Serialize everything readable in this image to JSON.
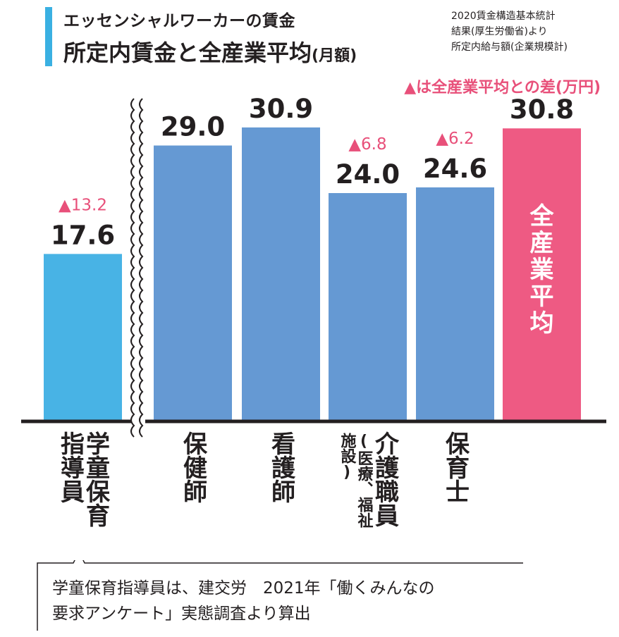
{
  "header": {
    "title_line1": "エッセンシャルワーカーの賃金",
    "title_line2_main": "所定内賃金と全産業平均",
    "title_line2_unit": "(月額)"
  },
  "source": {
    "line1": "2020賃金構造基本統計",
    "line2": "結果(厚生労働省)より",
    "line3": "所定内給与額(企業規模計)"
  },
  "legend_note": "▲は全産業平均との差(万円)",
  "colors": {
    "light_blue": "#48b3e5",
    "blue": "#6599d3",
    "pink": "#ee5a83",
    "diff_pink": "#e8507a",
    "text": "#231f20"
  },
  "chart_data": {
    "type": "bar",
    "unit": "万円",
    "categories": [
      "学童保育\n指導員",
      "保健師",
      "看護師",
      "介護職員",
      "保育士",
      "全産業平均"
    ],
    "category_sub": [
      "",
      "",
      "",
      "(医療、福祉\n施設)",
      "",
      ""
    ],
    "values": [
      17.6,
      29.0,
      30.9,
      24.0,
      24.6,
      30.8
    ],
    "value_labels": [
      "17.6",
      "29.0",
      "30.9",
      "24.0",
      "24.6",
      "30.8"
    ],
    "diff_labels": [
      "▲13.2",
      "",
      "",
      "▲6.8",
      "▲6.2",
      ""
    ],
    "bar_inner_label": [
      "",
      "",
      "",
      "",
      "",
      "全産業平均"
    ],
    "axis_break_after_first": true
  },
  "footnote": {
    "line1": "学童保育指導員は、建交労　2021年「働くみんなの",
    "line2": "要求アンケート」実態調査より算出"
  }
}
